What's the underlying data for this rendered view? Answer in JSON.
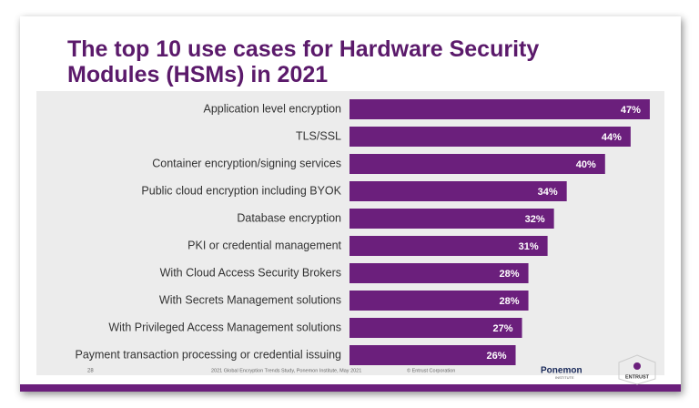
{
  "chart_data": {
    "type": "bar",
    "orientation": "horizontal",
    "title": "The top 10 use cases for Hardware Security Modules (HSMs) in 2021",
    "categories": [
      "Application level encryption",
      "TLS/SSL",
      "Container encryption/signing services",
      "Public cloud encryption including BYOK",
      "Database encryption",
      "PKI or credential management",
      "With Cloud Access Security Brokers",
      "With Secrets Management solutions",
      "With Privileged Access Management solutions",
      "Payment transaction processing or credential issuing"
    ],
    "values": [
      47,
      44,
      40,
      34,
      32,
      31,
      28,
      28,
      27,
      26
    ],
    "value_labels": [
      "47%",
      "44%",
      "40%",
      "34%",
      "32%",
      "31%",
      "28%",
      "28%",
      "27%",
      "26%"
    ],
    "color": "#6b1f7c"
  },
  "footer": {
    "page": "28",
    "source": "2021 Global Encryption Trends Study, Ponemon Institute, May 2021",
    "copyright": "© Entrust Corporation",
    "logo_left": "Ponemon",
    "logo_left_sub": "INSTITUTE",
    "logo_right": "ENTRUST"
  }
}
